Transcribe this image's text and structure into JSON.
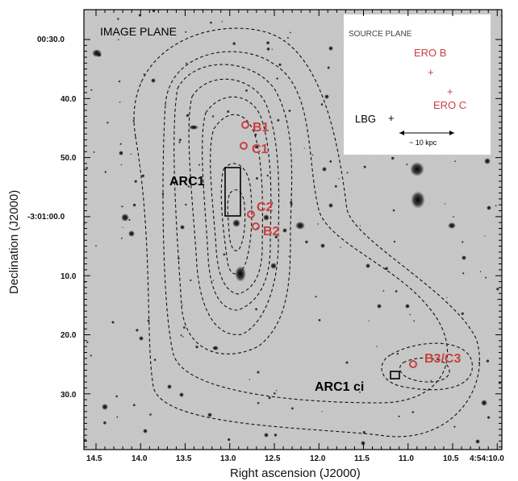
{
  "image_plane": {
    "title": "IMAGE PLANE"
  },
  "source_plane": {
    "title": "SOURCE PLANE",
    "labels": {
      "ero_b": "ERO B",
      "ero_c": "ERO C",
      "lbg": "LBG"
    },
    "scale_bar": "~ 10 kpc",
    "marker_symbol": "+"
  },
  "images": {
    "b1": "B1",
    "c1": "C1",
    "c2": "C2",
    "b2": "B2",
    "b3c3": "B3/C3"
  },
  "arcs": {
    "arc1": "ARC1",
    "arc1_ci": "ARC1 ci"
  },
  "axes": {
    "x_label": "Right ascension (J2000)",
    "y_label": "Declination (J2000)",
    "x_ticks": [
      "14.5",
      "14.0",
      "13.5",
      "13.0",
      "12.5",
      "12.0",
      "11.5",
      "11.0",
      "10.5",
      "4:54:10.0"
    ],
    "y_ticks": [
      "00:30.0",
      "40.0",
      "50.0",
      "-3:01:00.0",
      "10.0",
      "20.0",
      "30.0"
    ]
  }
}
